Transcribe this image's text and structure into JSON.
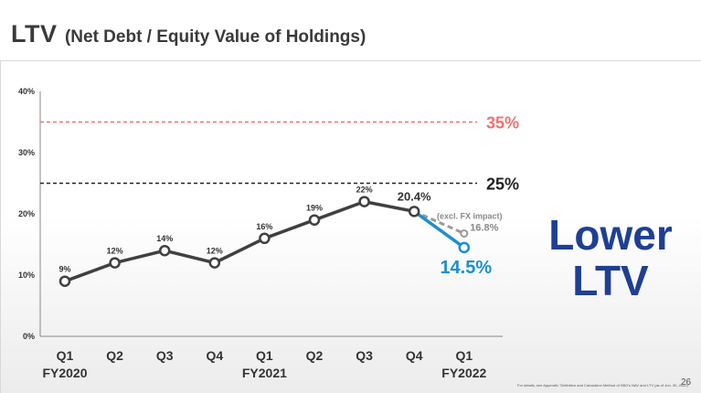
{
  "header": {
    "title_main": "LTV",
    "title_sub": "(Net Debt / Equity Value of Holdings)"
  },
  "chart_data": {
    "type": "line",
    "title": "LTV (Net Debt / Equity Value of Holdings)",
    "categories": [
      "Q1",
      "Q2",
      "Q3",
      "Q4",
      "Q1",
      "Q2",
      "Q3",
      "Q4",
      "Q1"
    ],
    "category_groups": [
      {
        "label": "FY2020",
        "index": 0
      },
      {
        "label": "FY2021",
        "index": 4
      },
      {
        "label": "FY2022",
        "index": 8
      }
    ],
    "ylim": [
      0,
      40
    ],
    "yticks": [
      0,
      10,
      20,
      30,
      40
    ],
    "ytick_labels": [
      "0%",
      "10%",
      "20%",
      "30%",
      "40%"
    ],
    "series": [
      {
        "name": "LTV",
        "color": "#404040",
        "values": [
          9,
          12,
          14,
          12,
          16,
          19,
          22,
          20.4,
          null
        ],
        "labels": [
          "9%",
          "12%",
          "14%",
          "12%",
          "16%",
          "19%",
          "22%",
          "20.4%",
          ""
        ]
      },
      {
        "name": "LTV latest",
        "color": "#1b8fd0",
        "values": [
          null,
          null,
          null,
          null,
          null,
          null,
          null,
          20.4,
          14.5
        ],
        "labels": [
          "",
          "",
          "",
          "",
          "",
          "",
          "",
          "",
          "14.5%"
        ]
      },
      {
        "name": "excl. FX impact",
        "color": "#9a9a9a",
        "style": "dashed",
        "values": [
          null,
          null,
          null,
          null,
          null,
          null,
          null,
          20.4,
          16.8
        ],
        "labels": [
          "",
          "",
          "",
          "",
          "",
          "",
          "",
          "",
          "16.8%"
        ],
        "annotation": "(excl. FX impact)"
      }
    ],
    "reference_lines": [
      {
        "value": 35,
        "label": "35%",
        "color": "#f07070"
      },
      {
        "value": 25,
        "label": "25%",
        "color": "#222222"
      }
    ]
  },
  "callout": {
    "line1": "Lower",
    "line2": "LTV",
    "color": "#1f3f94"
  },
  "footnote": "For details, see Appendix \"Definition and Calculation Method of SBG's NAV and LTV (as of Jun. 30, 2022)\"",
  "page_number": "26"
}
